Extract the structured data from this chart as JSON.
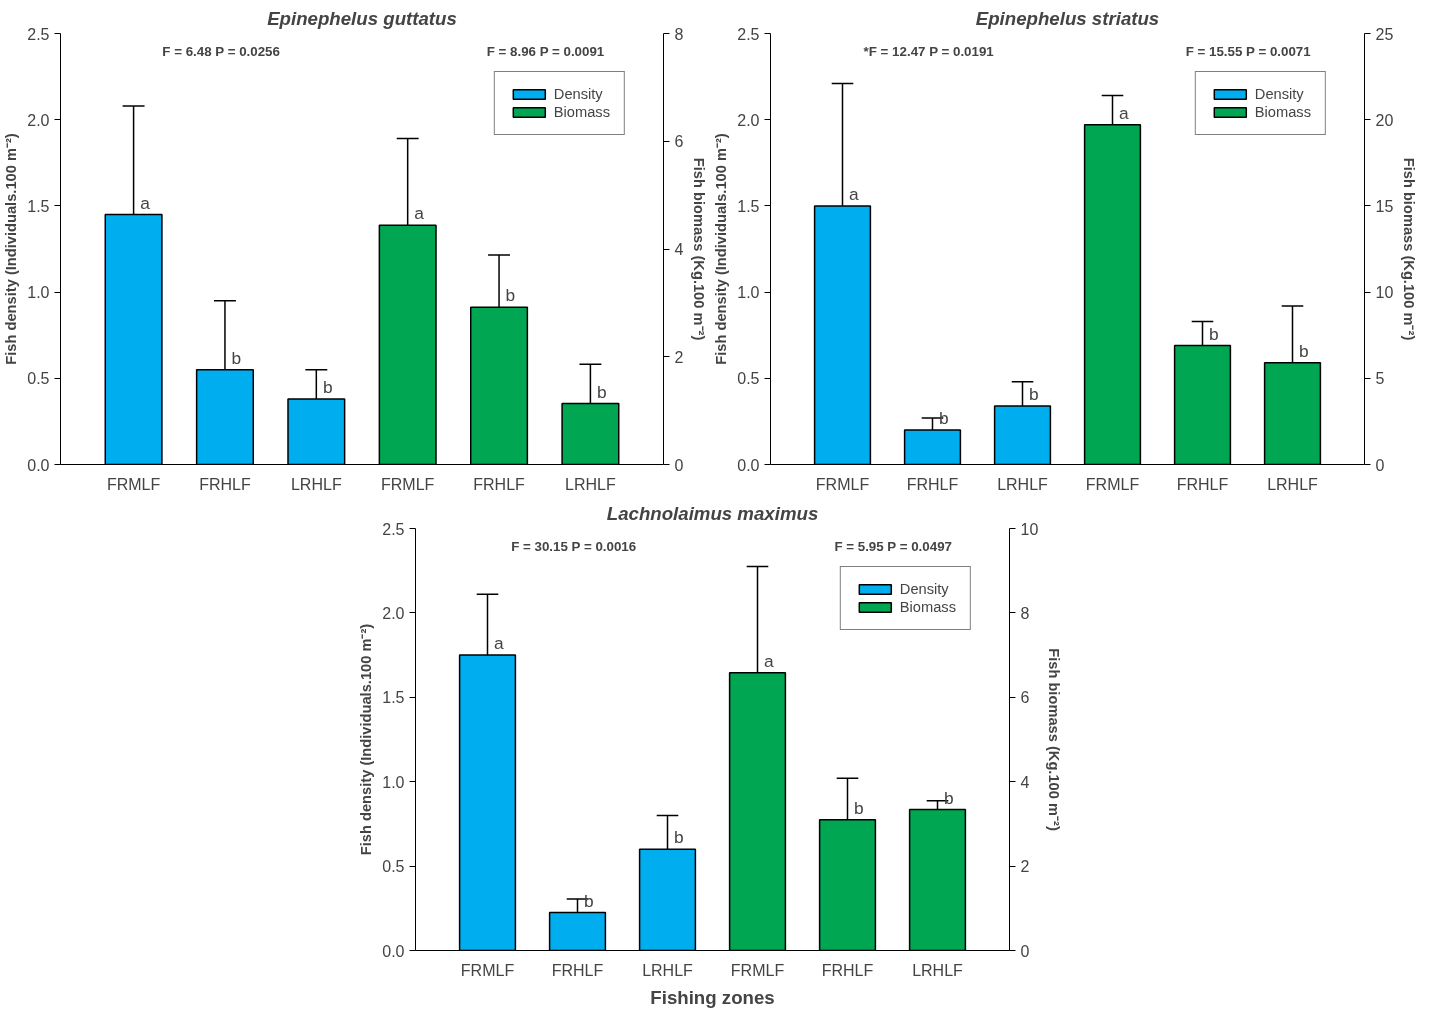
{
  "chart_data": [
    {
      "type": "bar",
      "title": "Epinephelus guttatus",
      "ylabel": "Fish density (Individuals.100 m⁻²)",
      "y2label": "Fish biomass (Kg.100 m⁻²)",
      "categories": [
        "FRMLF",
        "FRHLF",
        "LRHLF",
        "FRMLF",
        "FRHLF",
        "LRHLF"
      ],
      "ylim": [
        0,
        2.5
      ],
      "yticks": [
        {
          "value": 0,
          "label": "0.0"
        },
        0.5,
        {
          "value": 1,
          "label": "1.0"
        },
        1.5,
        {
          "value": 2,
          "label": "2.0"
        },
        2.5
      ],
      "y2lim": [
        0,
        8
      ],
      "y2ticks": [
        0,
        2,
        4,
        6,
        8
      ],
      "legend": "top right",
      "grid": false,
      "annotations": [
        "F = 6.48   P = 0.0256",
        "F = 8.96   P = 0.0091"
      ],
      "series": [
        {
          "name": "Density",
          "color": "#00aeef",
          "values": [
            1.45,
            0.55,
            0.38,
            null,
            null,
            null
          ],
          "errors": [
            [
              1.45,
              2.08
            ],
            [
              0.55,
              0.95
            ],
            [
              0.38,
              0.55
            ],
            null,
            null,
            null
          ],
          "value_labels": [
            "a",
            "b",
            "b",
            null,
            null,
            null
          ]
        },
        {
          "name": "Biomass",
          "color": "#00a651",
          "axis": "y2",
          "values": [
            null,
            null,
            null,
            4.44,
            2.92,
            1.13
          ],
          "errors": [
            null,
            null,
            null,
            [
              4.44,
              6.05
            ],
            [
              2.92,
              3.89
            ],
            [
              1.13,
              1.86
            ]
          ],
          "value_labels": [
            null,
            null,
            null,
            "a",
            "b",
            "b"
          ]
        }
      ]
    },
    {
      "type": "bar",
      "title": "Epinephelus striatus",
      "ylabel": "Fish density (Individuals.100 m⁻²)",
      "y2label": "Fish biomass (Kg.100 m⁻²)",
      "categories": [
        "FRMLF",
        "FRHLF",
        "LRHLF",
        "FRMLF",
        "FRHLF",
        "LRHLF"
      ],
      "ylim": [
        0,
        2.5
      ],
      "yticks": [
        {
          "value": 0,
          "label": "0.0"
        },
        0.5,
        {
          "value": 1,
          "label": "1.0"
        },
        1.5,
        {
          "value": 2,
          "label": "2.0"
        },
        2.5
      ],
      "y2lim": [
        0,
        25
      ],
      "y2ticks": [
        0,
        5,
        10,
        15,
        20,
        25
      ],
      "legend": "top right",
      "grid": false,
      "annotations": [
        "*F = 12.47   P = 0.0191",
        "F = 15.55   P = 0.0071"
      ],
      "series": [
        {
          "name": "Density",
          "color": "#00aeef",
          "values": [
            1.5,
            0.2,
            0.34,
            null,
            null,
            null
          ],
          "errors": [
            [
              1.5,
              2.21
            ],
            [
              0.2,
              0.27
            ],
            [
              0.34,
              0.48
            ],
            null,
            null,
            null
          ],
          "value_labels": [
            "a",
            "b",
            "b",
            null,
            null,
            null
          ]
        },
        {
          "name": "Biomass",
          "color": "#00a651",
          "axis": "y2",
          "values": [
            null,
            null,
            null,
            19.7,
            6.9,
            5.9
          ],
          "errors": [
            null,
            null,
            null,
            [
              19.7,
              21.4
            ],
            [
              6.9,
              8.3
            ],
            [
              5.9,
              9.2
            ]
          ],
          "value_labels": [
            null,
            null,
            null,
            "a",
            "b",
            "b"
          ]
        }
      ]
    },
    {
      "type": "bar",
      "title": "Lachnolaimus maximus",
      "xlabel": "Fishing zones",
      "ylabel": "Fish density (Individuals.100 m⁻²)",
      "y2label": "Fish biomass (Kg.100 m⁻²)",
      "categories": [
        "FRMLF",
        "FRHLF",
        "LRHLF",
        "FRMLF",
        "FRHLF",
        "LRHLF"
      ],
      "ylim": [
        0,
        2.5
      ],
      "yticks": [
        {
          "value": 0,
          "label": "0.0"
        },
        0.5,
        {
          "value": 1,
          "label": "1.0"
        },
        1.5,
        {
          "value": 2,
          "label": "2.0"
        },
        2.5
      ],
      "y2lim": [
        0,
        10
      ],
      "y2ticks": [
        0,
        2,
        4,
        6,
        8,
        10
      ],
      "legend": "top right",
      "grid": false,
      "annotations": [
        "F = 30.15   P = 0.0016",
        "F = 5.95   P = 0.0497"
      ],
      "series": [
        {
          "name": "Density",
          "color": "#00aeef",
          "values": [
            1.75,
            0.225,
            0.6,
            null,
            null,
            null
          ],
          "errors": [
            [
              1.75,
              2.11
            ],
            [
              0.225,
              0.305
            ],
            [
              0.6,
              0.8
            ],
            null,
            null,
            null
          ],
          "value_labels": [
            "a",
            "b",
            "b",
            null,
            null,
            null
          ]
        },
        {
          "name": "Biomass",
          "color": "#00a651",
          "axis": "y2",
          "values": [
            null,
            null,
            null,
            6.58,
            3.1,
            3.34
          ],
          "errors": [
            null,
            null,
            null,
            [
              6.58,
              9.1
            ],
            [
              3.1,
              4.08
            ],
            [
              3.34,
              3.55
            ]
          ],
          "value_labels": [
            null,
            null,
            null,
            "a",
            "b",
            "b"
          ]
        }
      ]
    }
  ]
}
